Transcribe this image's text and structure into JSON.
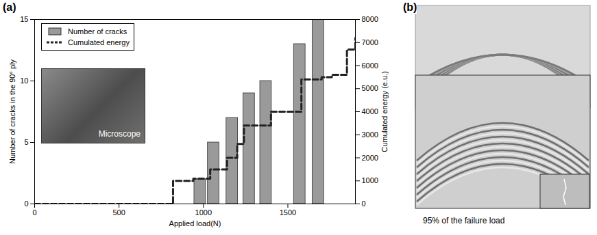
{
  "chart_data": {
    "type": "bar",
    "panel_label": "(a)",
    "xlabel": "Applied load(N)",
    "ylabel": "Number of cracks in the 90° ply",
    "y2label": "Cumulated energy (e.u.)",
    "xlim": [
      0,
      1900
    ],
    "xticks": [
      0,
      500,
      1000,
      1500
    ],
    "ylim": [
      0,
      15
    ],
    "yticks": [
      0,
      5,
      10,
      15
    ],
    "y2lim": [
      0,
      8000
    ],
    "y2ticks": [
      0,
      1000,
      2000,
      3000,
      4000,
      5000,
      6000,
      7000,
      8000
    ],
    "legend": "top-left",
    "annotations": [
      "Microscope"
    ],
    "series": [
      {
        "name": "Number of cracks",
        "type": "bar",
        "color": "#9a9a9a",
        "x": [
          980,
          1060,
          1170,
          1270,
          1370,
          1570,
          1680
        ],
        "values": [
          2,
          5,
          7,
          9,
          10,
          13,
          15
        ]
      },
      {
        "name": "Cumulated energy",
        "type": "line",
        "axis": "y2",
        "color": "#222222",
        "line_style": "dashed",
        "x": [
          0,
          800,
          820,
          940,
          1040,
          1140,
          1200,
          1240,
          1400,
          1580,
          1700,
          1760,
          1850,
          1900
        ],
        "values": [
          0,
          0,
          1000,
          1100,
          1500,
          2000,
          2600,
          3400,
          4000,
          5400,
          5500,
          5600,
          6700,
          7200
        ]
      }
    ]
  },
  "photo": {
    "panel_label": "(b)",
    "caption": "95% of the failure load"
  }
}
